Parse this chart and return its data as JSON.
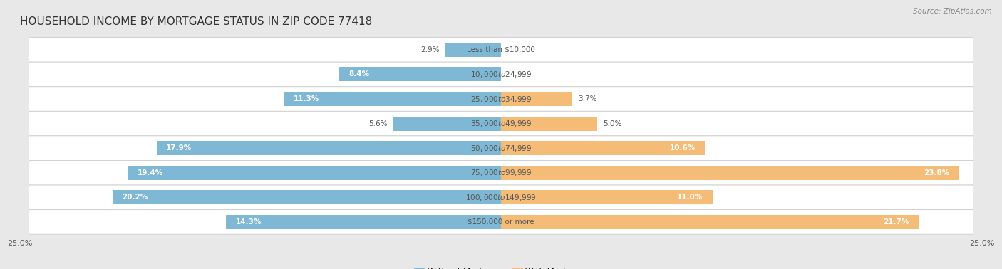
{
  "title": "HOUSEHOLD INCOME BY MORTGAGE STATUS IN ZIP CODE 77418",
  "source": "Source: ZipAtlas.com",
  "categories": [
    "Less than $10,000",
    "$10,000 to $24,999",
    "$25,000 to $34,999",
    "$35,000 to $49,999",
    "$50,000 to $74,999",
    "$75,000 to $99,999",
    "$100,000 to $149,999",
    "$150,000 or more"
  ],
  "without_mortgage": [
    2.9,
    8.4,
    11.3,
    5.6,
    17.9,
    19.4,
    20.2,
    14.3
  ],
  "with_mortgage": [
    0.0,
    0.0,
    3.7,
    5.0,
    10.6,
    23.8,
    11.0,
    21.7
  ],
  "color_without": "#7eb8d4",
  "color_with": "#f5bc78",
  "color_without_dark": "#5a9abf",
  "color_with_dark": "#e8963a",
  "axis_max": 25.0,
  "fig_bg": "#e8e8e8",
  "row_bg": "#f0f0f0",
  "row_border": "#cccccc",
  "title_color": "#333333",
  "source_color": "#888888",
  "label_color_dark": "#555555",
  "title_fontsize": 11,
  "label_fontsize": 7.5,
  "tick_fontsize": 8,
  "legend_fontsize": 8.5,
  "source_fontsize": 7.5,
  "bar_height": 0.58,
  "inside_threshold": 8.0
}
